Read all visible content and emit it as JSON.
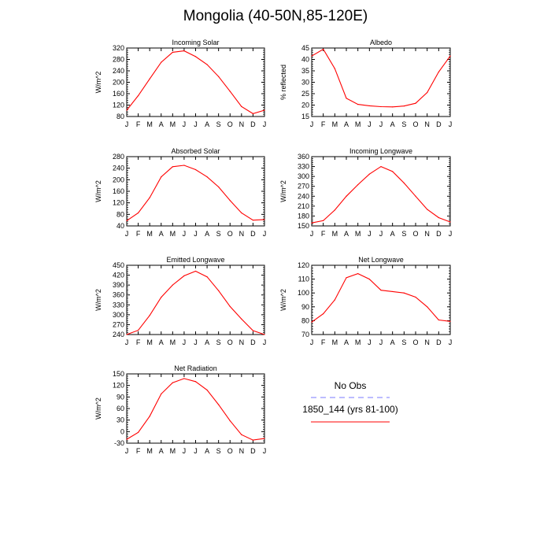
{
  "title": "Mongolia (40-50N,85-120E)",
  "legend": {
    "obs_label": "No Obs",
    "model_label": "1850_144 (yrs 81-100)",
    "obs_color": "#7878ff",
    "model_color": "#ff0000"
  },
  "months": [
    "J",
    "F",
    "M",
    "A",
    "M",
    "J",
    "J",
    "A",
    "S",
    "O",
    "N",
    "D",
    "J"
  ],
  "chart_data": [
    {
      "type": "line",
      "title": "Incoming Solar",
      "ylabel": "W/m^2",
      "ylim": [
        80,
        320
      ],
      "yticks": [
        80,
        120,
        160,
        200,
        240,
        280,
        320
      ],
      "categories": [
        "J",
        "F",
        "M",
        "A",
        "M",
        "J",
        "J",
        "A",
        "S",
        "O",
        "N",
        "D",
        "J"
      ],
      "values": [
        102,
        153,
        212,
        270,
        305,
        310,
        290,
        262,
        220,
        168,
        115,
        90,
        102
      ]
    },
    {
      "type": "line",
      "title": "Albedo",
      "ylabel": "% reflected",
      "ylim": [
        15,
        45
      ],
      "yticks": [
        15,
        20,
        25,
        30,
        35,
        40,
        45
      ],
      "categories": [
        "J",
        "F",
        "M",
        "A",
        "M",
        "J",
        "J",
        "A",
        "S",
        "O",
        "N",
        "D",
        "J"
      ],
      "values": [
        41.5,
        44.5,
        36,
        23,
        20.3,
        19.7,
        19.3,
        19.2,
        19.6,
        20.8,
        25.5,
        34.5,
        41.5
      ]
    },
    {
      "type": "line",
      "title": "Absorbed Solar",
      "ylabel": "W/m^2",
      "ylim": [
        40,
        280
      ],
      "yticks": [
        40,
        80,
        120,
        160,
        200,
        240,
        280
      ],
      "categories": [
        "J",
        "F",
        "M",
        "A",
        "M",
        "J",
        "J",
        "A",
        "S",
        "O",
        "N",
        "D",
        "J"
      ],
      "values": [
        58,
        85,
        138,
        210,
        245,
        250,
        235,
        210,
        175,
        128,
        85,
        60,
        62
      ]
    },
    {
      "type": "line",
      "title": "Incoming Longwave",
      "ylabel": "W/m^2",
      "ylim": [
        150,
        360
      ],
      "yticks": [
        150,
        180,
        210,
        240,
        270,
        300,
        330,
        360
      ],
      "categories": [
        "J",
        "F",
        "M",
        "A",
        "M",
        "J",
        "J",
        "A",
        "S",
        "O",
        "N",
        "D",
        "J"
      ],
      "values": [
        159,
        166,
        198,
        240,
        275,
        307,
        330,
        315,
        280,
        240,
        200,
        175,
        162
      ]
    },
    {
      "type": "line",
      "title": "Emitted Longwave",
      "ylabel": "W/m^2",
      "ylim": [
        240,
        450
      ],
      "yticks": [
        240,
        270,
        300,
        330,
        360,
        390,
        420,
        450
      ],
      "categories": [
        "J",
        "F",
        "M",
        "A",
        "M",
        "J",
        "J",
        "A",
        "S",
        "O",
        "N",
        "D",
        "J"
      ],
      "values": [
        240,
        253,
        298,
        353,
        390,
        418,
        432,
        415,
        373,
        325,
        287,
        252,
        240
      ]
    },
    {
      "type": "line",
      "title": "Net Longwave",
      "ylabel": "W/m^2",
      "ylim": [
        70,
        120
      ],
      "yticks": [
        70,
        80,
        90,
        100,
        110,
        120
      ],
      "categories": [
        "J",
        "F",
        "M",
        "A",
        "M",
        "J",
        "J",
        "A",
        "S",
        "O",
        "N",
        "D",
        "J"
      ],
      "values": [
        79,
        85,
        95,
        111,
        114,
        110,
        102,
        101,
        100,
        97,
        90,
        80.5,
        79.5
      ]
    },
    {
      "type": "line",
      "title": "Net Radiation",
      "ylabel": "W/m^2",
      "ylim": [
        -30,
        150
      ],
      "yticks": [
        -30,
        0,
        30,
        60,
        90,
        120,
        150
      ],
      "categories": [
        "J",
        "F",
        "M",
        "A",
        "M",
        "J",
        "J",
        "A",
        "S",
        "O",
        "N",
        "D",
        "J"
      ],
      "values": [
        -20,
        -2,
        40,
        98,
        127,
        138,
        130,
        108,
        70,
        28,
        -8,
        -22,
        -18
      ]
    }
  ]
}
